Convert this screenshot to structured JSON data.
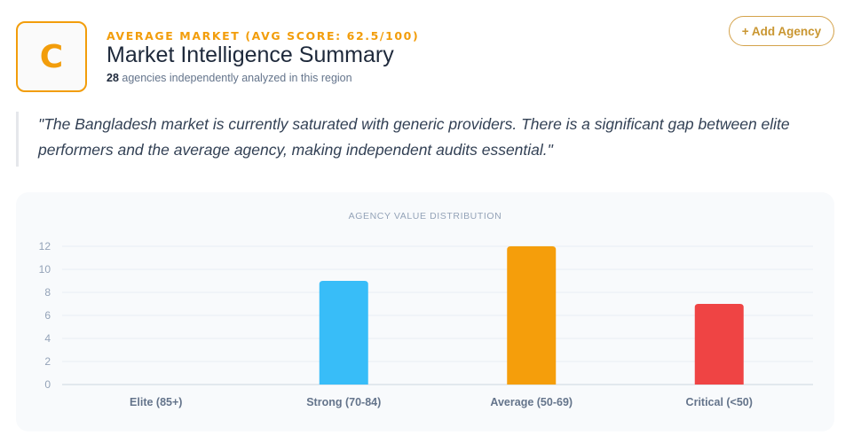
{
  "header": {
    "grade": "C",
    "kicker": "AVERAGE MARKET (AVG SCORE: 62.5/100)",
    "title": "Market Intelligence Summary",
    "agency_count": "28",
    "agency_count_suffix": " agencies independently analyzed in this region",
    "add_button_label": "+ Add Agency",
    "accent_color": "#f29d0b"
  },
  "quote": "\"The Bangladesh market is currently saturated with generic providers. There is a significant gap between elite performers and the average agency, making independent audits essential.\"",
  "chart_data": {
    "type": "bar",
    "title": "AGENCY VALUE DISTRIBUTION",
    "categories": [
      "Elite (85+)",
      "Strong (70-84)",
      "Average (50-69)",
      "Critical (<50)"
    ],
    "values": [
      0,
      9,
      12,
      7
    ],
    "colors": [
      "#22c55e",
      "#38bdf8",
      "#f59e0b",
      "#ef4444"
    ],
    "yticks": [
      0,
      2,
      4,
      6,
      8,
      10,
      12
    ],
    "ylim": [
      0,
      12
    ],
    "xlabel": "",
    "ylabel": "",
    "grid": true,
    "legend": "none"
  }
}
